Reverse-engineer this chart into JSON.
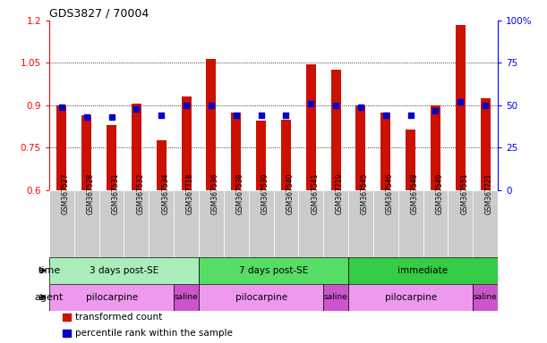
{
  "title": "GDS3827 / 70004",
  "samples": [
    "GSM367527",
    "GSM367528",
    "GSM367531",
    "GSM367532",
    "GSM367534",
    "GSM367718",
    "GSM367536",
    "GSM367538",
    "GSM367539",
    "GSM367540",
    "GSM367541",
    "GSM367719",
    "GSM367545",
    "GSM367546",
    "GSM367548",
    "GSM367549",
    "GSM367551",
    "GSM367721"
  ],
  "transformed_count": [
    0.9,
    0.865,
    0.83,
    0.905,
    0.775,
    0.93,
    1.065,
    0.875,
    0.845,
    0.85,
    1.045,
    1.025,
    0.9,
    0.875,
    0.815,
    0.9,
    1.185,
    0.925
  ],
  "percentile_rank": [
    49,
    43,
    43,
    48,
    44,
    50,
    50,
    44,
    44,
    44,
    51,
    50,
    49,
    44,
    44,
    47,
    52,
    50
  ],
  "bar_color": "#cc1100",
  "dot_color": "#0000cc",
  "ylim_left": [
    0.6,
    1.2
  ],
  "ylim_right": [
    0,
    100
  ],
  "yticks_left": [
    0.6,
    0.75,
    0.9,
    1.05,
    1.2
  ],
  "yticks_right": [
    0,
    25,
    50,
    75,
    100
  ],
  "ytick_labels_left": [
    "0.6",
    "0.75",
    "0.9",
    "1.05",
    "1.2"
  ],
  "ytick_labels_right": [
    "0",
    "25",
    "50",
    "75",
    "100%"
  ],
  "hlines": [
    0.75,
    0.9,
    1.05
  ],
  "time_groups": [
    {
      "label": "3 days post-SE",
      "start": 0,
      "end": 5,
      "color": "#aaeebb"
    },
    {
      "label": "7 days post-SE",
      "start": 6,
      "end": 11,
      "color": "#55dd66"
    },
    {
      "label": "immediate",
      "start": 12,
      "end": 17,
      "color": "#33cc44"
    }
  ],
  "agent_groups": [
    {
      "label": "pilocarpine",
      "start": 0,
      "end": 4,
      "color": "#ee99ee"
    },
    {
      "label": "saline",
      "start": 5,
      "end": 5,
      "color": "#cc55cc"
    },
    {
      "label": "pilocarpine",
      "start": 6,
      "end": 10,
      "color": "#ee99ee"
    },
    {
      "label": "saline",
      "start": 11,
      "end": 11,
      "color": "#cc55cc"
    },
    {
      "label": "pilocarpine",
      "start": 12,
      "end": 16,
      "color": "#ee99ee"
    },
    {
      "label": "saline",
      "start": 17,
      "end": 17,
      "color": "#cc55cc"
    }
  ],
  "legend_items": [
    {
      "label": "transformed count",
      "color": "#cc1100"
    },
    {
      "label": "percentile rank within the sample",
      "color": "#0000cc"
    }
  ],
  "label_bg_color": "#cccccc",
  "background_color": "#ffffff"
}
